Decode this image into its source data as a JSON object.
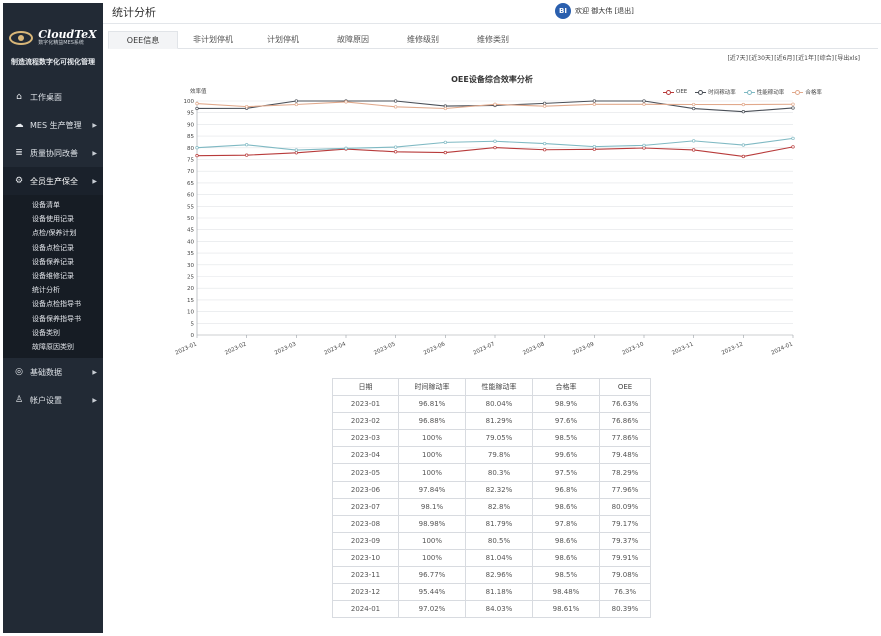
{
  "brand": {
    "name": "CloudTeX",
    "subtitle": "数字化精益MES系统",
    "tagline": "制造流程数字化可视化管理"
  },
  "header": {
    "title": "统计分析",
    "avatar_text": "BI",
    "welcome": "欢迎 御大伟 [退出]"
  },
  "sidebar": {
    "items": [
      {
        "label": "工作桌面",
        "icon": "home-icon",
        "glyph": "⌂",
        "has_arrow": false
      },
      {
        "label": "MES 生产管理",
        "icon": "cloud-icon",
        "glyph": "☁",
        "has_arrow": true
      },
      {
        "label": "质量协同改善",
        "icon": "layers-icon",
        "glyph": "≣",
        "has_arrow": true
      },
      {
        "label": "全员生产保全",
        "icon": "gear-icon",
        "glyph": "⚙",
        "has_arrow": true,
        "active": true
      },
      {
        "label": "基础数据",
        "icon": "target-icon",
        "glyph": "◎",
        "has_arrow": true
      },
      {
        "label": "帐户设置",
        "icon": "user-icon",
        "glyph": "♙",
        "has_arrow": true
      }
    ],
    "subitems": [
      "设备清单",
      "设备使用记录",
      "点检/保养计划",
      "设备点检记录",
      "设备保养记录",
      "设备维修记录",
      "统计分析",
      "设备点检指导书",
      "设备保养指导书",
      "设备类别",
      "故障原因类别"
    ]
  },
  "tabs": [
    "OEE信息",
    "非计划停机",
    "计划停机",
    "故障原因",
    "维修级别",
    "维修类别"
  ],
  "active_tab": 0,
  "range_options": [
    "[近7天]",
    "[近30天]",
    "[近6月]",
    "[近1年]",
    "[综合]",
    "[导出xls]"
  ],
  "chart_data": {
    "type": "line",
    "title": "OEE设备综合效率分析",
    "ylabel": "效率值",
    "ylim": [
      0,
      100
    ],
    "ytick_step": 5,
    "grid": true,
    "legend_position": "top-right",
    "x": [
      "2023-01",
      "2023-02",
      "2023-03",
      "2023-04",
      "2023-05",
      "2023-06",
      "2023-07",
      "2023-08",
      "2023-09",
      "2023-10",
      "2023-11",
      "2023-12",
      "2024-01"
    ],
    "series": [
      {
        "name": "OEE",
        "color": "#b83b3b",
        "values": [
          76.63,
          76.86,
          77.86,
          79.48,
          78.29,
          77.96,
          80.09,
          79.17,
          79.37,
          79.91,
          79.08,
          76.3,
          80.39
        ]
      },
      {
        "name": "时间稼动率",
        "color": "#4a4f57",
        "values": [
          96.81,
          96.88,
          100,
          100,
          100,
          97.84,
          98.1,
          98.98,
          100,
          100,
          96.77,
          95.44,
          97.02
        ]
      },
      {
        "name": "性能稼动率",
        "color": "#7fb9c3",
        "values": [
          80.04,
          81.29,
          79.05,
          79.8,
          80.3,
          82.32,
          82.8,
          81.79,
          80.5,
          81.04,
          82.96,
          81.18,
          84.03
        ]
      },
      {
        "name": "合格率",
        "color": "#e1a98c",
        "values": [
          98.9,
          97.6,
          98.5,
          99.6,
          97.5,
          96.8,
          98.6,
          97.8,
          98.6,
          98.6,
          98.5,
          98.48,
          98.61
        ]
      }
    ]
  },
  "table": {
    "headers": [
      "日期",
      "时间稼动率",
      "性能稼动率",
      "合格率",
      "OEE"
    ],
    "rows": [
      [
        "2023-01",
        "96.81%",
        "80.04%",
        "98.9%",
        "76.63%"
      ],
      [
        "2023-02",
        "96.88%",
        "81.29%",
        "97.6%",
        "76.86%"
      ],
      [
        "2023-03",
        "100%",
        "79.05%",
        "98.5%",
        "77.86%"
      ],
      [
        "2023-04",
        "100%",
        "79.8%",
        "99.6%",
        "79.48%"
      ],
      [
        "2023-05",
        "100%",
        "80.3%",
        "97.5%",
        "78.29%"
      ],
      [
        "2023-06",
        "97.84%",
        "82.32%",
        "96.8%",
        "77.96%"
      ],
      [
        "2023-07",
        "98.1%",
        "82.8%",
        "98.6%",
        "80.09%"
      ],
      [
        "2023-08",
        "98.98%",
        "81.79%",
        "97.8%",
        "79.17%"
      ],
      [
        "2023-09",
        "100%",
        "80.5%",
        "98.6%",
        "79.37%"
      ],
      [
        "2023-10",
        "100%",
        "81.04%",
        "98.6%",
        "79.91%"
      ],
      [
        "2023-11",
        "96.77%",
        "82.96%",
        "98.5%",
        "79.08%"
      ],
      [
        "2023-12",
        "95.44%",
        "81.18%",
        "98.48%",
        "76.3%"
      ],
      [
        "2024-01",
        "97.02%",
        "84.03%",
        "98.61%",
        "80.39%"
      ]
    ]
  }
}
